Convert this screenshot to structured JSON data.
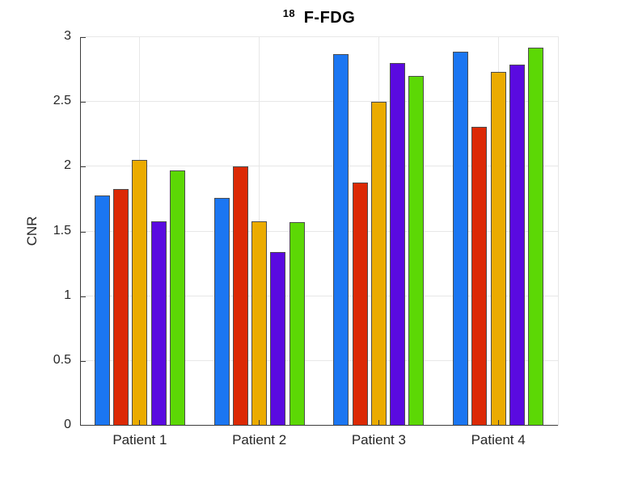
{
  "figure": {
    "title": {
      "superscript": "18",
      "text": "F-FDG"
    }
  },
  "chart_data": {
    "type": "bar",
    "title": "18 F-FDG",
    "categories": [
      "Patient 1",
      "Patient 2",
      "Patient 3",
      "Patient 4"
    ],
    "series": [
      {
        "color": "#1B76F2",
        "values": [
          1.78,
          1.76,
          2.87,
          2.89
        ]
      },
      {
        "color": "#DC2905",
        "values": [
          1.83,
          2.0,
          1.88,
          2.31
        ]
      },
      {
        "color": "#EBAB00",
        "values": [
          2.05,
          1.58,
          2.5,
          2.73
        ]
      },
      {
        "color": "#5A0AE0",
        "values": [
          1.58,
          1.34,
          2.8,
          2.79
        ]
      },
      {
        "color": "#5CD805",
        "values": [
          1.97,
          1.57,
          2.7,
          2.92
        ]
      }
    ],
    "xlabel": "",
    "ylabel": "CNR",
    "ylim": [
      0,
      3
    ],
    "yticks": [
      0,
      0.5,
      1,
      1.5,
      2,
      2.5,
      3
    ],
    "ytick_labels": [
      "0",
      "0.5",
      "1",
      "1.5",
      "2",
      "2.5",
      "3"
    ],
    "grid": true,
    "legend": "none",
    "colors": {
      "bar_edge": "#4d4d4d",
      "grid": "#e7e7e7",
      "axis": "#3c3c3c",
      "text": "#262626"
    }
  }
}
